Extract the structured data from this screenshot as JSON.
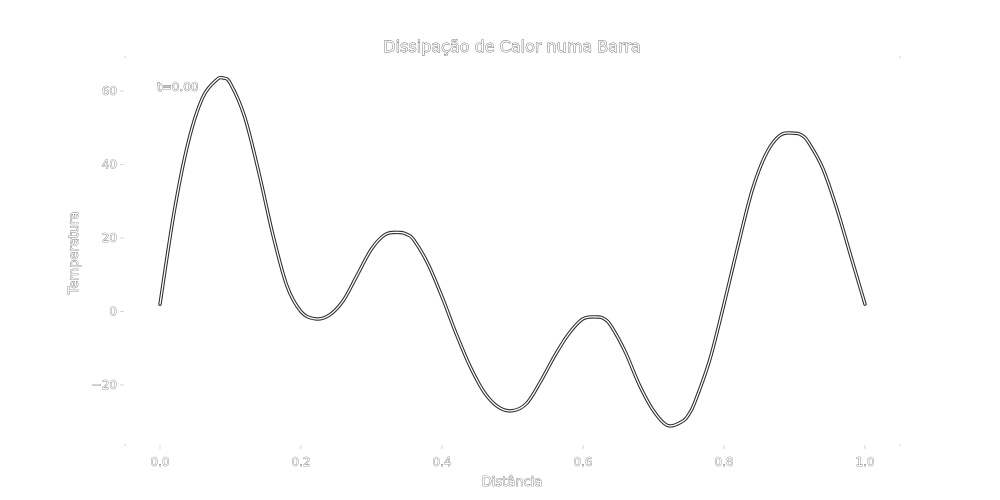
{
  "colors": {
    "background": "#ffffff",
    "series_outline": "#2b2b2b",
    "series_fill": "#ffffff",
    "text_outline": "#3a3a3a"
  },
  "chart_data": {
    "type": "line",
    "title": "Dissipação de Calor numa Barra",
    "xlabel": "Distância",
    "ylabel": "Temperatura",
    "xlim": [
      0.0,
      1.0
    ],
    "ylim": [
      -35,
      65
    ],
    "x_ticks": [
      0.0,
      0.2,
      0.4,
      0.6,
      0.8,
      1.0
    ],
    "x_tick_labels": [
      "0.0",
      "0.2",
      "0.4",
      "0.6",
      "0.8",
      "1.0"
    ],
    "y_ticks": [
      60,
      40,
      20,
      0,
      -20
    ],
    "y_tick_labels": [
      "60",
      "40",
      "20",
      "0",
      "−20"
    ],
    "grid": false,
    "annotation": "t=0.00",
    "series": [
      {
        "x": [
          0.0,
          0.02,
          0.04,
          0.06,
          0.08,
          0.09,
          0.1,
          0.12,
          0.14,
          0.16,
          0.18,
          0.2,
          0.22,
          0.24,
          0.26,
          0.28,
          0.3,
          0.32,
          0.34,
          0.35,
          0.36,
          0.38,
          0.4,
          0.42,
          0.44,
          0.46,
          0.48,
          0.5,
          0.52,
          0.54,
          0.56,
          0.58,
          0.6,
          0.62,
          0.63,
          0.64,
          0.66,
          0.68,
          0.7,
          0.72,
          0.74,
          0.75,
          0.76,
          0.78,
          0.8,
          0.82,
          0.84,
          0.86,
          0.88,
          0.9,
          0.91,
          0.92,
          0.94,
          0.96,
          0.98,
          1.0
        ],
        "y": [
          2,
          27,
          46,
          58,
          63,
          63.5,
          62,
          53,
          38,
          21,
          7,
          0,
          -2,
          -1,
          3,
          10,
          17,
          21,
          21.5,
          21,
          19.5,
          13,
          4,
          -6,
          -15,
          -22,
          -26,
          -27,
          -25,
          -19,
          -12,
          -6,
          -2,
          -1.5,
          -2,
          -4,
          -11,
          -20,
          -27,
          -31,
          -30,
          -28,
          -24,
          -13,
          2,
          18,
          33,
          43,
          48,
          48.5,
          48,
          46,
          39,
          28,
          15,
          2
        ]
      }
    ]
  }
}
